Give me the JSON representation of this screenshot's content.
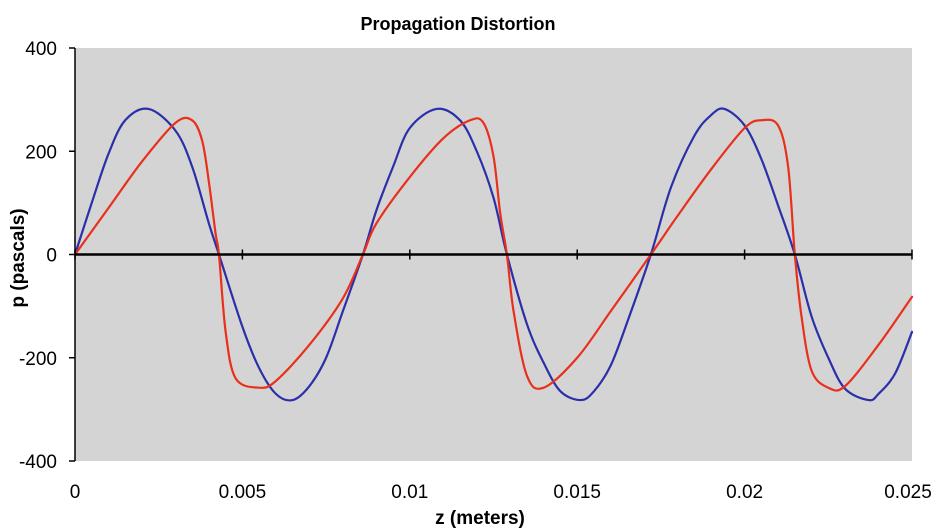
{
  "chart_data": {
    "type": "line",
    "title": "Propagation Distortion",
    "xlabel": "z (meters)",
    "ylabel": "p (pascals)",
    "xlim": [
      0,
      0.025
    ],
    "ylim": [
      -400,
      400
    ],
    "x_ticks": [
      0,
      0.005,
      0.01,
      0.015,
      0.02,
      0.025
    ],
    "x_tick_labels": [
      "0",
      "0.005",
      "0.01",
      "0.015",
      "0.02",
      "0.025"
    ],
    "y_ticks": [
      -400,
      -200,
      0,
      200,
      400
    ],
    "y_tick_labels": [
      "-400",
      "-200",
      "0",
      "200",
      "400"
    ],
    "grid": false,
    "legend": "none",
    "plot_background": "#d4d4d4",
    "series": [
      {
        "color": "#2b2fa8",
        "x": [
          0,
          0.0005,
          0.001,
          0.0015,
          0.0022,
          0.003,
          0.0035,
          0.004,
          0.0043,
          0.005,
          0.0055,
          0.006,
          0.0065,
          0.007,
          0.0075,
          0.008,
          0.0086,
          0.009,
          0.0095,
          0.01,
          0.0108,
          0.0115,
          0.012,
          0.0125,
          0.0129,
          0.0135,
          0.014,
          0.0145,
          0.0151,
          0.0155,
          0.016,
          0.0165,
          0.0172,
          0.0178,
          0.0185,
          0.019,
          0.0194,
          0.02,
          0.0205,
          0.021,
          0.0215,
          0.022,
          0.0225,
          0.023,
          0.0237,
          0.024,
          0.0245,
          0.025
        ],
        "y": [
          0,
          100,
          195,
          260,
          282,
          240,
          170,
          60,
          0,
          -140,
          -220,
          -270,
          -282,
          -255,
          -200,
          -110,
          0,
          85,
          170,
          245,
          282,
          260,
          200,
          110,
          0,
          -135,
          -210,
          -265,
          -282,
          -265,
          -215,
          -130,
          0,
          130,
          230,
          270,
          282,
          250,
          185,
          95,
          0,
          -120,
          -200,
          -260,
          -282,
          -270,
          -230,
          -150
        ]
      },
      {
        "color": "#e8301c",
        "x": [
          0,
          0.001,
          0.002,
          0.003,
          0.0035,
          0.0038,
          0.004,
          0.0042,
          0.0043,
          0.0045,
          0.0048,
          0.0055,
          0.006,
          0.007,
          0.008,
          0.0086,
          0.009,
          0.01,
          0.011,
          0.0118,
          0.0122,
          0.0125,
          0.0127,
          0.0129,
          0.0131,
          0.0135,
          0.014,
          0.015,
          0.016,
          0.0172,
          0.018,
          0.019,
          0.02,
          0.0205,
          0.021,
          0.0213,
          0.0215,
          0.0217,
          0.022,
          0.0225,
          0.023,
          0.024,
          0.025
        ],
        "y": [
          0,
          90,
          180,
          255,
          260,
          220,
          140,
          40,
          0,
          -150,
          -240,
          -258,
          -245,
          -175,
          -85,
          0,
          60,
          150,
          225,
          260,
          255,
          190,
          80,
          0,
          -110,
          -235,
          -258,
          -200,
          -110,
          0,
          75,
          165,
          245,
          260,
          250,
          170,
          0,
          -120,
          -225,
          -258,
          -255,
          -175,
          -82
        ]
      }
    ]
  }
}
